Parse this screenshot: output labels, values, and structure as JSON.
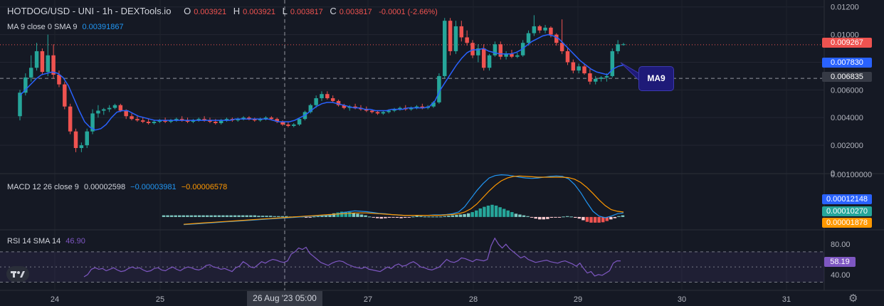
{
  "header": {
    "symbol": "HOTDOG/USD - UNI - 1h - DEXTools.io",
    "o_label": "O",
    "o_value": "0.003921",
    "h_label": "H",
    "h_value": "0.003921",
    "l_label": "L",
    "l_value": "0.003817",
    "c_label": "C",
    "c_value": "0.003817",
    "change": "-0.0001 (-2.66%)"
  },
  "ma_legend": {
    "label": "MA 9 close 0 SMA 9",
    "value": "0.00391867"
  },
  "macd_legend": {
    "label": "MACD 12 26 close 9",
    "v1": "0.00002598",
    "v2": "−0.00003981",
    "v3": "−0.00006578"
  },
  "rsi_legend": {
    "label": "RSI 14 SMA 14",
    "value": "46.90"
  },
  "callout_label": "MA9",
  "cursor_date": "26 Aug '23   05:00",
  "colors": {
    "up": "#26a69a",
    "down": "#ef5350",
    "ma": "#2962ff",
    "macd": "#2196f3",
    "signal": "#ff9800",
    "rsi": "#7e57c2",
    "bg": "#151924"
  },
  "chart_data": [
    {
      "type": "candlestick",
      "title": "HOTDOG/USD - UNI - 1h - DEXTools.io",
      "x_ticks": [
        "24",
        "25",
        "26 Aug '23",
        "27",
        "28",
        "29",
        "30",
        "31"
      ],
      "y_ticks": [
        "0.01200",
        "0.01000",
        "0.006000",
        "0.004000",
        "0.002000",
        "0"
      ],
      "ylim": [
        0,
        0.0125
      ],
      "last_price": "0.009267",
      "ma9_value": "0.007830",
      "crosshair_price": "0.006835",
      "candles": [
        [
          0.0041,
          0.006,
          0.0038,
          0.0058
        ],
        [
          0.0058,
          0.0072,
          0.0056,
          0.0069
        ],
        [
          0.0069,
          0.0085,
          0.0066,
          0.0076
        ],
        [
          0.0076,
          0.0094,
          0.0074,
          0.0088
        ],
        [
          0.0088,
          0.009,
          0.0071,
          0.0073
        ],
        [
          0.0073,
          0.01,
          0.007,
          0.0085
        ],
        [
          0.0085,
          0.0093,
          0.0068,
          0.0071
        ],
        [
          0.0071,
          0.0074,
          0.0062,
          0.0064
        ],
        [
          0.0064,
          0.0066,
          0.0046,
          0.0048
        ],
        [
          0.0048,
          0.005,
          0.0028,
          0.003
        ],
        [
          0.003,
          0.0032,
          0.0015,
          0.0018
        ],
        [
          0.0018,
          0.0022,
          0.0015,
          0.002
        ],
        [
          0.002,
          0.0032,
          0.0018,
          0.003
        ],
        [
          0.003,
          0.0046,
          0.0028,
          0.0043
        ],
        [
          0.0043,
          0.0049,
          0.004,
          0.0045
        ],
        [
          0.0045,
          0.0047,
          0.0042,
          0.0046
        ],
        [
          0.0046,
          0.0049,
          0.0044,
          0.0047
        ],
        [
          0.0047,
          0.005,
          0.0046,
          0.0049
        ],
        [
          0.0049,
          0.005,
          0.0044,
          0.0045
        ],
        [
          0.0045,
          0.0046,
          0.0039,
          0.0041
        ],
        [
          0.0041,
          0.0043,
          0.0038,
          0.0039
        ],
        [
          0.0039,
          0.0041,
          0.0037,
          0.0038
        ],
        [
          0.0038,
          0.004,
          0.0036,
          0.0037
        ],
        [
          0.0037,
          0.0039,
          0.0035,
          0.0036
        ],
        [
          0.0036,
          0.0038,
          0.0035,
          0.0037
        ],
        [
          0.0037,
          0.0039,
          0.0036,
          0.0038
        ],
        [
          0.0038,
          0.004,
          0.0036,
          0.0037
        ],
        [
          0.0037,
          0.0039,
          0.0036,
          0.0038
        ],
        [
          0.0038,
          0.004,
          0.0037,
          0.0039
        ],
        [
          0.0039,
          0.0041,
          0.0037,
          0.0038
        ],
        [
          0.0038,
          0.004,
          0.0036,
          0.0037
        ],
        [
          0.0037,
          0.0039,
          0.0036,
          0.0038
        ],
        [
          0.0038,
          0.004,
          0.0037,
          0.0039
        ],
        [
          0.0039,
          0.0041,
          0.0037,
          0.0038
        ],
        [
          0.0038,
          0.004,
          0.0036,
          0.0037
        ],
        [
          0.0037,
          0.0039,
          0.0035,
          0.0036
        ],
        [
          0.0036,
          0.0039,
          0.0035,
          0.0038
        ],
        [
          0.0038,
          0.004,
          0.0037,
          0.0039
        ],
        [
          0.0039,
          0.004,
          0.0037,
          0.0038
        ],
        [
          0.0038,
          0.004,
          0.0037,
          0.0039
        ],
        [
          0.0039,
          0.0041,
          0.0038,
          0.004
        ],
        [
          0.004,
          0.0041,
          0.0038,
          0.0039
        ],
        [
          0.0039,
          0.004,
          0.0037,
          0.0038
        ],
        [
          0.0038,
          0.004,
          0.0037,
          0.0039
        ],
        [
          0.0039,
          0.0041,
          0.0038,
          0.004
        ],
        [
          0.004,
          0.0041,
          0.0038,
          0.0039
        ],
        [
          0.0039,
          0.004,
          0.0036,
          0.0037
        ],
        [
          0.0037,
          0.0038,
          0.0034,
          0.0035
        ],
        [
          0.0035,
          0.0037,
          0.0033,
          0.0034
        ],
        [
          0.0034,
          0.0036,
          0.0033,
          0.0035
        ],
        [
          0.0035,
          0.004,
          0.0034,
          0.0039
        ],
        [
          0.0039,
          0.0045,
          0.0038,
          0.0044
        ],
        [
          0.0044,
          0.005,
          0.0043,
          0.0049
        ],
        [
          0.0049,
          0.0056,
          0.0047,
          0.0054
        ],
        [
          0.0054,
          0.0059,
          0.0052,
          0.0057
        ],
        [
          0.0057,
          0.0059,
          0.0053,
          0.0054
        ],
        [
          0.0054,
          0.0056,
          0.0051,
          0.0052
        ],
        [
          0.0052,
          0.0053,
          0.0048,
          0.0049
        ],
        [
          0.0049,
          0.005,
          0.0046,
          0.0047
        ],
        [
          0.0047,
          0.0049,
          0.0045,
          0.0048
        ],
        [
          0.0048,
          0.005,
          0.0046,
          0.0047
        ],
        [
          0.0047,
          0.0049,
          0.0045,
          0.0046
        ],
        [
          0.0046,
          0.0048,
          0.0044,
          0.0045
        ],
        [
          0.0045,
          0.0046,
          0.0043,
          0.0044
        ],
        [
          0.0044,
          0.0045,
          0.0042,
          0.0043
        ],
        [
          0.0043,
          0.0045,
          0.0042,
          0.0044
        ],
        [
          0.0044,
          0.0046,
          0.0043,
          0.0045
        ],
        [
          0.0045,
          0.0047,
          0.0044,
          0.0046
        ],
        [
          0.0046,
          0.0048,
          0.0045,
          0.0047
        ],
        [
          0.0047,
          0.0049,
          0.0045,
          0.0046
        ],
        [
          0.0046,
          0.0048,
          0.0045,
          0.0047
        ],
        [
          0.0047,
          0.0049,
          0.0046,
          0.0048
        ],
        [
          0.0048,
          0.005,
          0.0046,
          0.0047
        ],
        [
          0.0047,
          0.0049,
          0.0046,
          0.0048
        ],
        [
          0.0048,
          0.0052,
          0.0047,
          0.0051
        ],
        [
          0.0051,
          0.0072,
          0.005,
          0.007
        ],
        [
          0.007,
          0.0112,
          0.0068,
          0.011
        ],
        [
          0.011,
          0.0112,
          0.0085,
          0.0088
        ],
        [
          0.0088,
          0.011,
          0.0086,
          0.0106
        ],
        [
          0.0106,
          0.011,
          0.0095,
          0.0098
        ],
        [
          0.0098,
          0.0103,
          0.0092,
          0.0094
        ],
        [
          0.0094,
          0.0096,
          0.0083,
          0.0085
        ],
        [
          0.0085,
          0.0093,
          0.008,
          0.009
        ],
        [
          0.009,
          0.0093,
          0.0074,
          0.0076
        ],
        [
          0.0076,
          0.0086,
          0.0074,
          0.0085
        ],
        [
          0.0085,
          0.0095,
          0.0084,
          0.0093
        ],
        [
          0.0093,
          0.0095,
          0.0082,
          0.0084
        ],
        [
          0.0084,
          0.0088,
          0.0082,
          0.0086
        ],
        [
          0.0086,
          0.0089,
          0.0083,
          0.0084
        ],
        [
          0.0084,
          0.0087,
          0.0083,
          0.0085
        ],
        [
          0.0085,
          0.0096,
          0.0084,
          0.0094
        ],
        [
          0.0094,
          0.0103,
          0.0092,
          0.0101
        ],
        [
          0.0101,
          0.0114,
          0.0099,
          0.0106
        ],
        [
          0.0106,
          0.0107,
          0.0101,
          0.0103
        ],
        [
          0.0103,
          0.0107,
          0.0101,
          0.0105
        ],
        [
          0.0105,
          0.0106,
          0.0098,
          0.01
        ],
        [
          0.01,
          0.0101,
          0.0092,
          0.0094
        ],
        [
          0.0094,
          0.0111,
          0.0086,
          0.0088
        ],
        [
          0.0088,
          0.009,
          0.0078,
          0.008
        ],
        [
          0.008,
          0.0082,
          0.0072,
          0.0074
        ],
        [
          0.0074,
          0.0079,
          0.0072,
          0.0077
        ],
        [
          0.0077,
          0.0079,
          0.0071,
          0.0072
        ],
        [
          0.0072,
          0.0075,
          0.0064,
          0.0066
        ],
        [
          0.0066,
          0.007,
          0.0064,
          0.0068
        ],
        [
          0.0068,
          0.007,
          0.0066,
          0.0069
        ],
        [
          0.0069,
          0.0072,
          0.0066,
          0.007
        ],
        [
          0.007,
          0.009,
          0.0069,
          0.0088
        ],
        [
          0.0088,
          0.0096,
          0.0086,
          0.0093
        ],
        [
          0.0093,
          0.0094,
          0.0092,
          0.0093
        ]
      ],
      "ma9": [
        0.0056,
        0.006,
        0.0064,
        0.0068,
        0.0071,
        0.0072,
        0.0073,
        0.0072,
        0.0069,
        0.0063,
        0.0054,
        0.0045,
        0.0037,
        0.0033,
        0.0031,
        0.0032,
        0.0035,
        0.004,
        0.0044,
        0.0045,
        0.0045,
        0.0043,
        0.0041,
        0.004,
        0.0039,
        0.0038,
        0.0038,
        0.0038,
        0.0038,
        0.0038,
        0.0038,
        0.0038,
        0.0038,
        0.0038,
        0.0038,
        0.0038,
        0.0038,
        0.0038,
        0.0038,
        0.0038,
        0.0039,
        0.0039,
        0.0039,
        0.0039,
        0.0039,
        0.0039,
        0.0039,
        0.0038,
        0.0037,
        0.0037,
        0.0037,
        0.0038,
        0.004,
        0.0042,
        0.0045,
        0.0048,
        0.005,
        0.0051,
        0.0051,
        0.005,
        0.0049,
        0.0048,
        0.0047,
        0.0047,
        0.0046,
        0.0046,
        0.0045,
        0.0045,
        0.0045,
        0.0046,
        0.0046,
        0.0046,
        0.0047,
        0.0047,
        0.0047,
        0.0047,
        0.0048,
        0.0052,
        0.006,
        0.0066,
        0.0072,
        0.0078,
        0.0083,
        0.0087,
        0.0089,
        0.0089,
        0.009,
        0.0088,
        0.0087,
        0.0086,
        0.0086,
        0.0086,
        0.0087,
        0.0089,
        0.0092,
        0.0095,
        0.0097,
        0.0099,
        0.01,
        0.0099,
        0.0097,
        0.0093,
        0.0089,
        0.0085,
        0.0081,
        0.0078,
        0.0075,
        0.0073,
        0.0072,
        0.0071,
        0.0075,
        0.0077,
        0.0078
      ]
    },
    {
      "type": "macd",
      "title": "MACD 12 26 close 9",
      "y_ticks": [
        "0.00100000"
      ],
      "values_shown": [
        "0.00012148",
        "0.00010270",
        "0.00001878"
      ],
      "ylim": [
        -0.0003,
        0.00105
      ],
      "histogram": [
        4e-05,
        4e-05,
        4e-05,
        4e-05,
        4e-05,
        4e-05,
        4e-05,
        4e-05,
        4e-05,
        4e-05,
        4e-05,
        4e-05,
        4e-05,
        4e-05,
        4e-05,
        4e-05,
        4e-05,
        4e-05,
        4e-05,
        4e-05,
        4e-05,
        4e-05,
        4e-05,
        4e-05,
        3e-05,
        3e-05,
        3e-05,
        3e-05,
        2e-05,
        2e-05,
        2e-05,
        2e-05,
        1e-05,
        1e-05,
        1e-05,
        1e-05,
        -1e-05,
        -1e-05,
        1e-05,
        2e-05,
        3e-05,
        5e-05,
        7e-05,
        9e-05,
        0.00011,
        0.00013,
        0.00013,
        0.00012,
        0.0001,
        8e-05,
        6e-05,
        4e-05,
        1e-05,
        -1e-05,
        -3e-05,
        -4e-05,
        -3e-05,
        -2e-05,
        -1e-05,
        -2e-05,
        -3e-05,
        -2e-05,
        -1e-05,
        1e-05,
        3e-05,
        2e-05,
        1e-05,
        1e-05,
        1e-05,
        1e-05,
        1e-05,
        2e-05,
        3e-05,
        4e-05,
        5e-05,
        6e-05,
        7e-05,
        9e-05,
        0.00012,
        0.00016,
        0.00021,
        0.00025,
        0.00028,
        0.0003,
        0.00028,
        0.00024,
        0.0002,
        0.00016,
        0.00012,
        8e-05,
        6e-05,
        4e-05,
        2e-05,
        -1e-05,
        -4e-05,
        -6e-05,
        -6e-05,
        -5e-05,
        -2e-05,
        -1e-05,
        -1e-05,
        1e-05,
        2e-05,
        1e-05,
        -2e-05,
        -4e-05,
        -8e-05,
        -0.00012,
        -0.00014,
        -0.00014,
        -0.00014,
        -0.00013,
        -0.0001,
        -6e-05,
        -3e-05,
        2e-05,
        4e-05
      ],
      "macd": [
        -0.00019,
        -0.00018,
        -0.00017,
        -0.00016,
        -0.00015,
        -0.00014,
        -0.00013,
        -0.00012,
        -0.00011,
        -0.0001,
        -9e-05,
        -8e-05,
        -7e-05,
        -6e-05,
        -5e-05,
        -4e-05,
        -3e-05,
        -2e-05,
        -1e-05,
        0.0,
        1e-05,
        2e-05,
        3e-05,
        4e-05,
        5e-05,
        7e-05,
        0.0001,
        0.00013,
        0.00015,
        0.00014,
        0.00013,
        0.00011,
        9e-05,
        8e-05,
        6e-05,
        5e-05,
        4e-05,
        4e-05,
        4e-05,
        4e-05,
        4e-05,
        5e-05,
        5e-05,
        6e-05,
        8e-05,
        0.00012,
        0.00025,
        0.00045,
        0.00065,
        0.00082,
        0.00096,
        0.00102,
        0.00104,
        0.00103,
        0.00101,
        0.00098,
        0.00096,
        0.00095,
        0.00096,
        0.00098,
        0.001,
        0.00101,
        0.001,
        0.00094,
        0.0008,
        0.0006,
        0.00036,
        0.00014,
        2e-05,
        -2e-05,
        2e-05,
        8e-05,
        0.0001
      ],
      "signal": [
        -0.00018,
        -0.00017,
        -0.00016,
        -0.00015,
        -0.00014,
        -0.00013,
        -0.00012,
        -0.00011,
        -0.0001,
        -9e-05,
        -8e-05,
        -7e-05,
        -6e-05,
        -5e-05,
        -4e-05,
        -3e-05,
        -2e-05,
        -1e-05,
        0.0,
        1e-05,
        2e-05,
        3e-05,
        4e-05,
        5e-05,
        6e-05,
        7e-05,
        8e-05,
        9e-05,
        0.0001,
        0.0001,
        0.0001,
        9e-05,
        8e-05,
        7e-05,
        6e-05,
        5e-05,
        4e-05,
        4e-05,
        4e-05,
        4e-05,
        4e-05,
        4e-05,
        4e-05,
        5e-05,
        6e-05,
        8e-05,
        0.00012,
        0.0002,
        0.00032,
        0.00048,
        0.00064,
        0.00078,
        0.00089,
        0.00096,
        0.001,
        0.00101,
        0.001,
        0.00099,
        0.00098,
        0.00098,
        0.00098,
        0.00098,
        0.00098,
        0.00097,
        0.00093,
        0.00085,
        0.00073,
        0.00058,
        0.00042,
        0.00028,
        0.00018,
        0.00014,
        0.00012
      ]
    },
    {
      "type": "rsi",
      "title": "RSI 14 SMA 14",
      "y_ticks": [
        "80.00",
        "40.00"
      ],
      "ylim": [
        22,
        98
      ],
      "band": [
        30,
        70
      ],
      "current": "58.19",
      "values": [
        37,
        40,
        47,
        49,
        47,
        48,
        45,
        47,
        49,
        46,
        44,
        45,
        48,
        50,
        48,
        49,
        46,
        44,
        45,
        48,
        49,
        46,
        45,
        48,
        50,
        47,
        45,
        48,
        50,
        49,
        47,
        46,
        48,
        52,
        53,
        50,
        49,
        47,
        48,
        46,
        44,
        49,
        51,
        57,
        54,
        50,
        49,
        53,
        57,
        55,
        58,
        60,
        59,
        57,
        56,
        58,
        67,
        70,
        75,
        73,
        76,
        68,
        64,
        60,
        56,
        54,
        52,
        55,
        57,
        58,
        57,
        54,
        52,
        50,
        49,
        48,
        50,
        47,
        46,
        45,
        44,
        47,
        50,
        48,
        52,
        54,
        51,
        52,
        55,
        57,
        54,
        50,
        49,
        47,
        46,
        48,
        50,
        55,
        60,
        57,
        56,
        58,
        62,
        61,
        59,
        57,
        60,
        59,
        58,
        60,
        78,
        88,
        80,
        75,
        80,
        74,
        70,
        66,
        62,
        64,
        60,
        58,
        56,
        57,
        58,
        59,
        57,
        56,
        55,
        57,
        58,
        56,
        54,
        51,
        55,
        48,
        42,
        44,
        38,
        40,
        39,
        42,
        45,
        55,
        58,
        58
      ]
    }
  ]
}
